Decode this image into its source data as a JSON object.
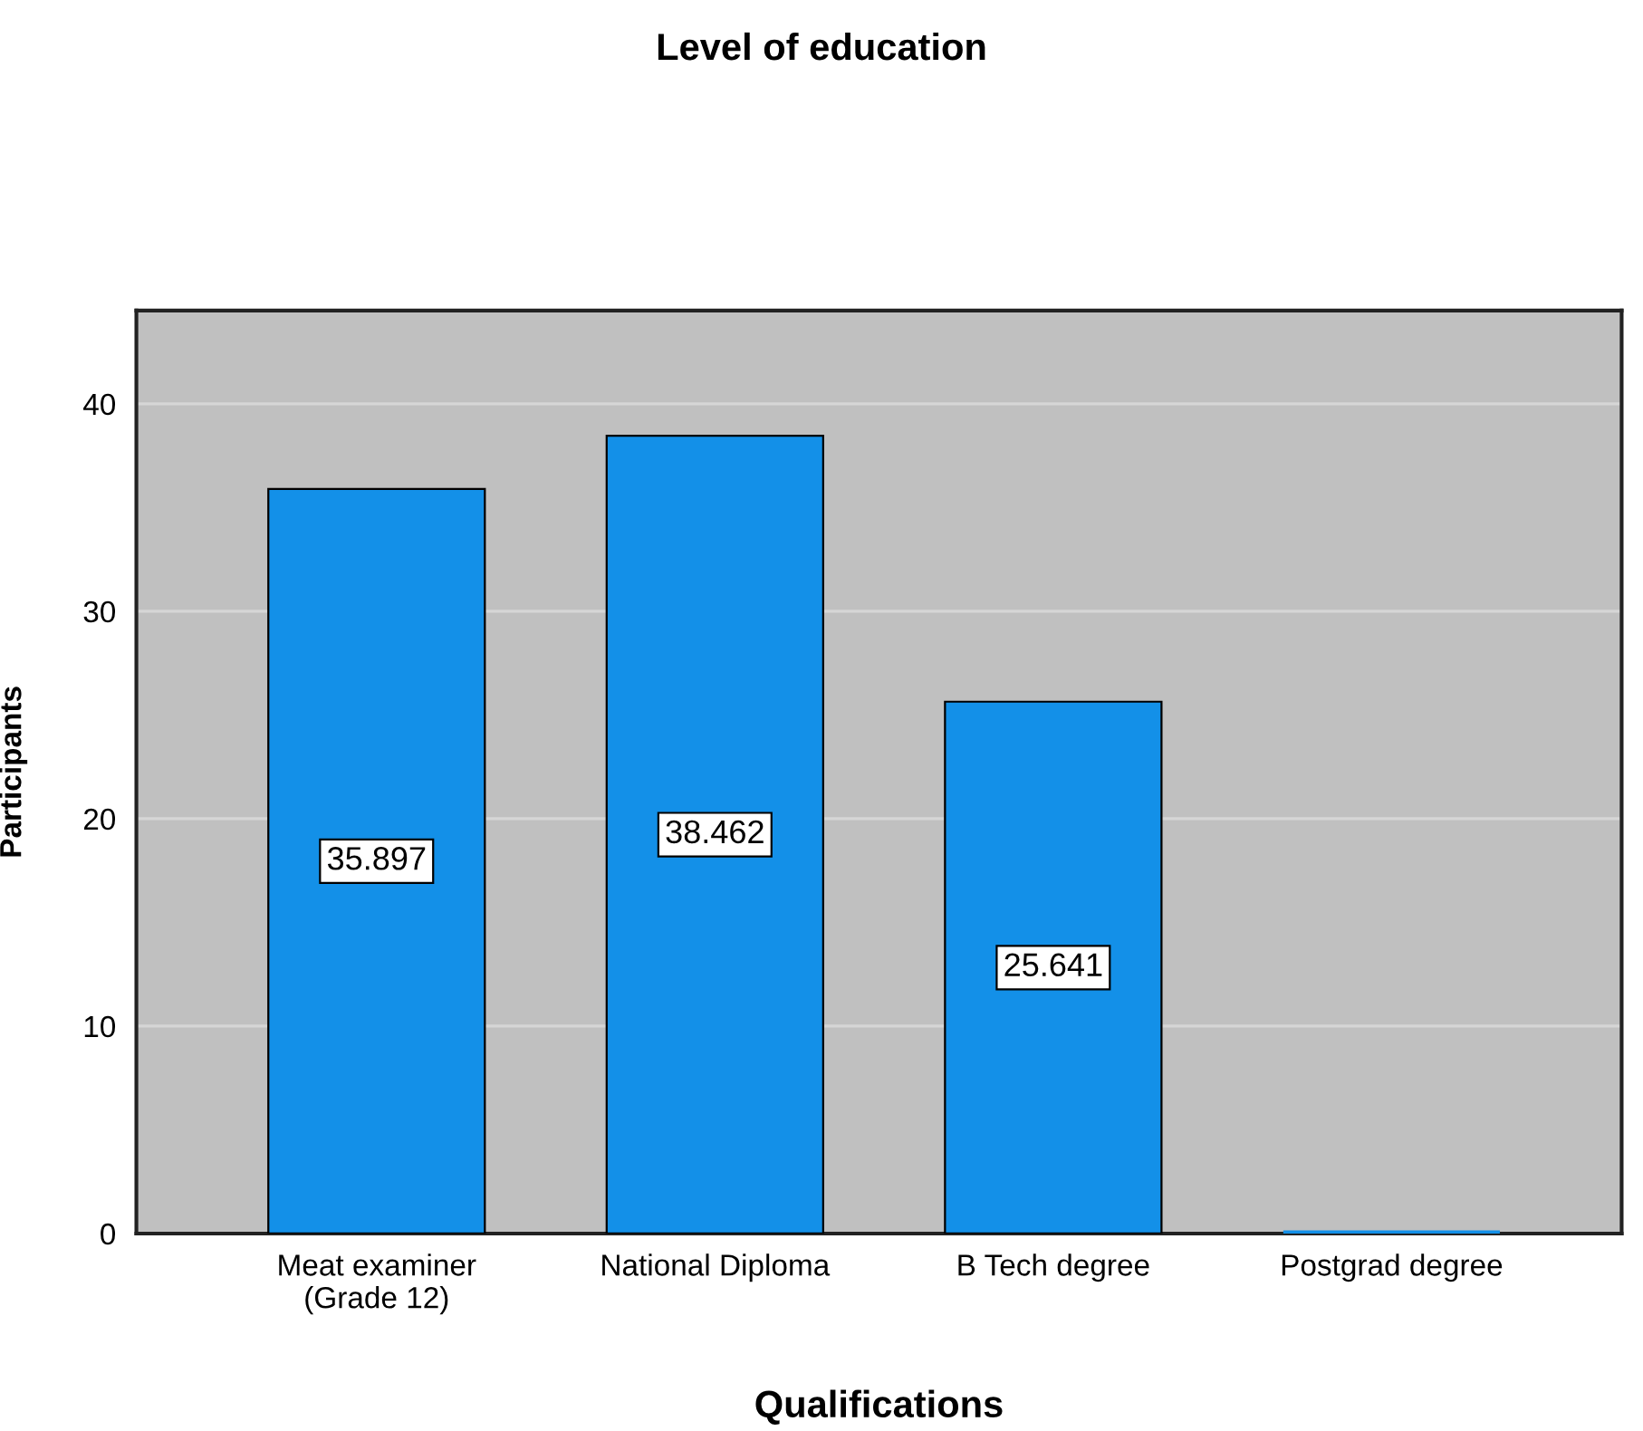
{
  "chart_data": {
    "type": "bar",
    "title": "Level of education",
    "xlabel": "Qualifications",
    "ylabel": "Participants",
    "categories": [
      "Meat examiner\n(Grade 12)",
      "National Diploma",
      "B Tech degree",
      "Postgrad degree"
    ],
    "values": [
      35.897,
      38.462,
      25.641,
      0
    ],
    "color": "#1390e8",
    "value_labels": [
      "35.897",
      "38.462",
      "25.641",
      null
    ],
    "ylim": [
      0,
      44.5
    ],
    "yticks": [
      0,
      10,
      20,
      30,
      40
    ],
    "grid": "y"
  }
}
